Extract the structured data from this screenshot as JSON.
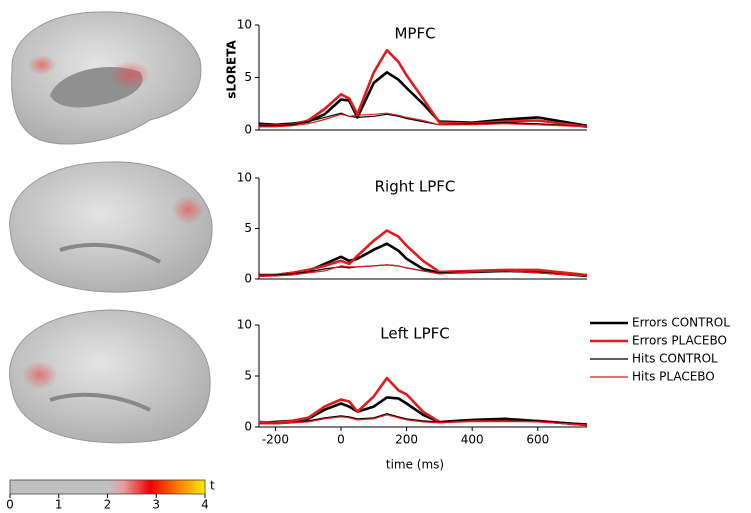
{
  "chart_data": [
    {
      "type": "line",
      "title": "MPFC",
      "ylabel": "sLORETA",
      "x": [
        -250,
        -200,
        -150,
        -100,
        -50,
        0,
        25,
        50,
        100,
        140,
        175,
        200,
        250,
        300,
        400,
        500,
        600,
        750
      ],
      "xlim": [
        -250,
        750
      ],
      "ylim": [
        0,
        10
      ],
      "yticks": [
        0,
        5,
        10
      ],
      "series": [
        {
          "name": "Errors CONTROL",
          "color": "#000000",
          "style": "thick",
          "values": [
            0.6,
            0.5,
            0.6,
            0.8,
            1.5,
            2.9,
            2.8,
            1.2,
            4.5,
            5.5,
            4.8,
            4.0,
            2.5,
            0.8,
            0.7,
            1.0,
            1.2,
            0.4
          ]
        },
        {
          "name": "Errors PLACEBO",
          "color": "#e01b1b",
          "style": "thick",
          "values": [
            0.4,
            0.4,
            0.5,
            0.9,
            2.0,
            3.4,
            3.0,
            1.5,
            5.5,
            7.6,
            6.5,
            5.2,
            3.0,
            0.7,
            0.6,
            0.8,
            0.9,
            0.3
          ]
        },
        {
          "name": "Hits CONTROL",
          "color": "#000000",
          "style": "thin",
          "values": [
            0.4,
            0.4,
            0.5,
            0.8,
            1.2,
            1.6,
            1.3,
            1.2,
            1.3,
            1.5,
            1.3,
            1.1,
            0.8,
            0.5,
            0.6,
            0.7,
            0.6,
            0.3
          ]
        },
        {
          "name": "Hits PLACEBO",
          "color": "#e01b1b",
          "style": "thin",
          "values": [
            0.3,
            0.3,
            0.4,
            0.6,
            1.0,
            1.5,
            1.3,
            1.4,
            1.5,
            1.6,
            1.4,
            1.2,
            0.9,
            0.5,
            0.5,
            0.6,
            0.5,
            0.3
          ]
        }
      ]
    },
    {
      "type": "line",
      "title": "Right LPFC",
      "x": [
        -250,
        -200,
        -150,
        -100,
        -50,
        0,
        25,
        50,
        100,
        140,
        175,
        200,
        250,
        300,
        400,
        500,
        600,
        750
      ],
      "xlim": [
        -250,
        750
      ],
      "ylim": [
        0,
        10
      ],
      "yticks": [
        0,
        5,
        10
      ],
      "series": [
        {
          "name": "Errors CONTROL",
          "color": "#000000",
          "style": "thick",
          "values": [
            0.4,
            0.4,
            0.6,
            0.8,
            1.5,
            2.2,
            1.8,
            2.0,
            2.9,
            3.5,
            2.8,
            2.0,
            1.0,
            0.6,
            0.7,
            0.8,
            0.7,
            0.3
          ]
        },
        {
          "name": "Errors PLACEBO",
          "color": "#e01b1b",
          "style": "thick",
          "values": [
            0.3,
            0.4,
            0.6,
            0.9,
            1.3,
            1.8,
            1.5,
            2.3,
            3.8,
            4.8,
            4.2,
            3.3,
            1.8,
            0.7,
            0.8,
            0.9,
            0.9,
            0.4
          ]
        },
        {
          "name": "Hits CONTROL",
          "color": "#000000",
          "style": "thin",
          "values": [
            0.3,
            0.4,
            0.5,
            0.7,
            1.0,
            1.2,
            1.1,
            1.2,
            1.3,
            1.4,
            1.3,
            1.1,
            0.8,
            0.6,
            0.7,
            0.8,
            0.6,
            0.3
          ]
        },
        {
          "name": "Hits PLACEBO",
          "color": "#e01b1b",
          "style": "thin",
          "values": [
            0.3,
            0.3,
            0.4,
            0.6,
            0.8,
            1.3,
            1.2,
            1.2,
            1.3,
            1.4,
            1.3,
            1.1,
            0.8,
            0.5,
            0.7,
            0.8,
            0.6,
            0.3
          ]
        }
      ]
    },
    {
      "type": "line",
      "title": "Left LPFC",
      "xlabel": "time (ms)",
      "x": [
        -250,
        -200,
        -150,
        -100,
        -50,
        0,
        25,
        50,
        100,
        140,
        175,
        200,
        250,
        300,
        400,
        500,
        600,
        750
      ],
      "xlim": [
        -250,
        750
      ],
      "xticks": [
        -200,
        0,
        200,
        400,
        600
      ],
      "ylim": [
        0,
        10
      ],
      "yticks": [
        0,
        5,
        10
      ],
      "series": [
        {
          "name": "Errors CONTROL",
          "color": "#000000",
          "style": "thick",
          "values": [
            0.4,
            0.5,
            0.6,
            0.8,
            1.7,
            2.3,
            2.0,
            1.5,
            2.0,
            2.9,
            2.8,
            2.3,
            1.2,
            0.5,
            0.7,
            0.8,
            0.6,
            0.2
          ]
        },
        {
          "name": "Errors PLACEBO",
          "color": "#e01b1b",
          "style": "thick",
          "values": [
            0.5,
            0.4,
            0.6,
            0.9,
            2.0,
            2.7,
            2.5,
            1.5,
            3.0,
            4.8,
            3.6,
            3.2,
            1.5,
            0.5,
            0.6,
            0.6,
            0.6,
            0.2
          ]
        },
        {
          "name": "Hits CONTROL",
          "color": "#000000",
          "style": "thin",
          "values": [
            0.3,
            0.3,
            0.4,
            0.6,
            0.9,
            1.1,
            1.0,
            0.8,
            0.9,
            1.3,
            1.0,
            0.8,
            0.6,
            0.5,
            0.7,
            0.7,
            0.6,
            0.3
          ]
        },
        {
          "name": "Hits PLACEBO",
          "color": "#e01b1b",
          "style": "thin",
          "values": [
            0.3,
            0.3,
            0.4,
            0.5,
            0.8,
            1.0,
            0.9,
            0.7,
            0.8,
            1.2,
            0.9,
            0.7,
            0.5,
            0.4,
            0.6,
            0.6,
            0.5,
            0.2
          ]
        }
      ]
    }
  ],
  "colorbar": {
    "label": "t",
    "lim": [
      0,
      4
    ],
    "ticks": [
      0,
      1,
      2,
      3,
      4
    ]
  }
}
